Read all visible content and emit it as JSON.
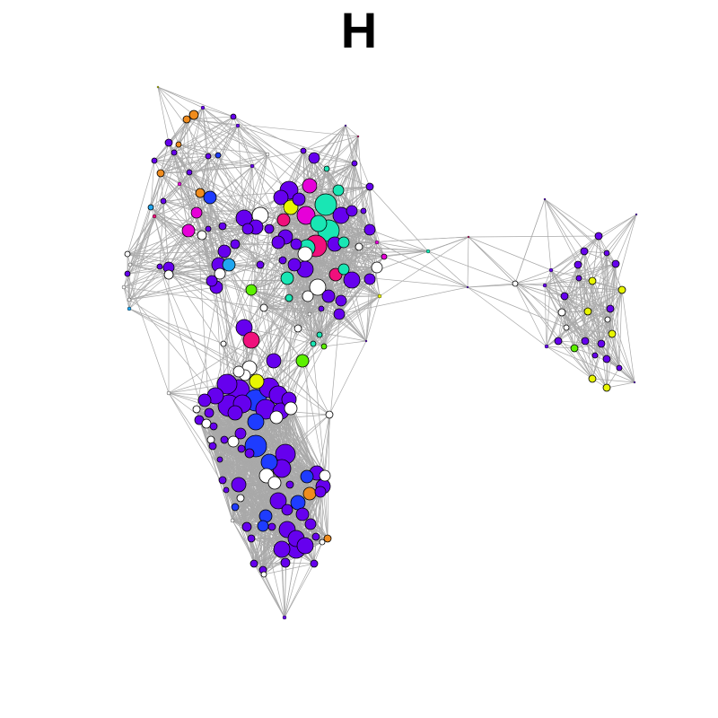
{
  "figure": {
    "title": "H"
  },
  "graph": {
    "edge_color": "#a9a9a9",
    "node_outline_color": "#000000",
    "node_palette": {
      "violet": "#6600ee",
      "blue": "#1e3cff",
      "aqua": "#19e6b4",
      "magenta": "#e600d8",
      "pink": "#f0107c",
      "yellow": "#e8f500",
      "green": "#5cf000",
      "orange": "#f08c1e",
      "sky": "#20a6f0",
      "white": "#ffffff"
    }
  }
}
